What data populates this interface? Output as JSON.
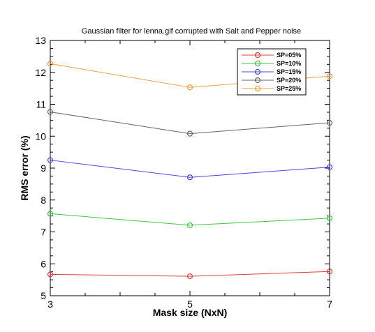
{
  "chart_data": {
    "type": "line",
    "title": "Gaussian filter for lenna.gif corrupted with Salt and Pepper noise",
    "xlabel": "Mask size (NxN)",
    "ylabel": "RMS error (%)",
    "x": [
      3,
      5,
      7
    ],
    "xlim": [
      3,
      7
    ],
    "ylim": [
      5,
      13
    ],
    "xticks": [
      3,
      5,
      7
    ],
    "yticks": [
      5,
      6,
      7,
      8,
      9,
      10,
      11,
      12,
      13
    ],
    "grid": false,
    "legend_position": "top-right",
    "series": [
      {
        "name": "SP=05%",
        "color": "#e03c3c",
        "values": [
          5.67,
          5.61,
          5.76
        ]
      },
      {
        "name": "SP=10%",
        "color": "#3cc83c",
        "values": [
          7.57,
          7.21,
          7.43
        ]
      },
      {
        "name": "SP=15%",
        "color": "#4646e6",
        "values": [
          9.25,
          8.71,
          9.03
        ]
      },
      {
        "name": "SP=20%",
        "color": "#646464",
        "values": [
          10.76,
          10.08,
          10.42
        ]
      },
      {
        "name": "SP=25%",
        "color": "#f0a040",
        "values": [
          12.27,
          11.53,
          11.88
        ]
      }
    ]
  }
}
